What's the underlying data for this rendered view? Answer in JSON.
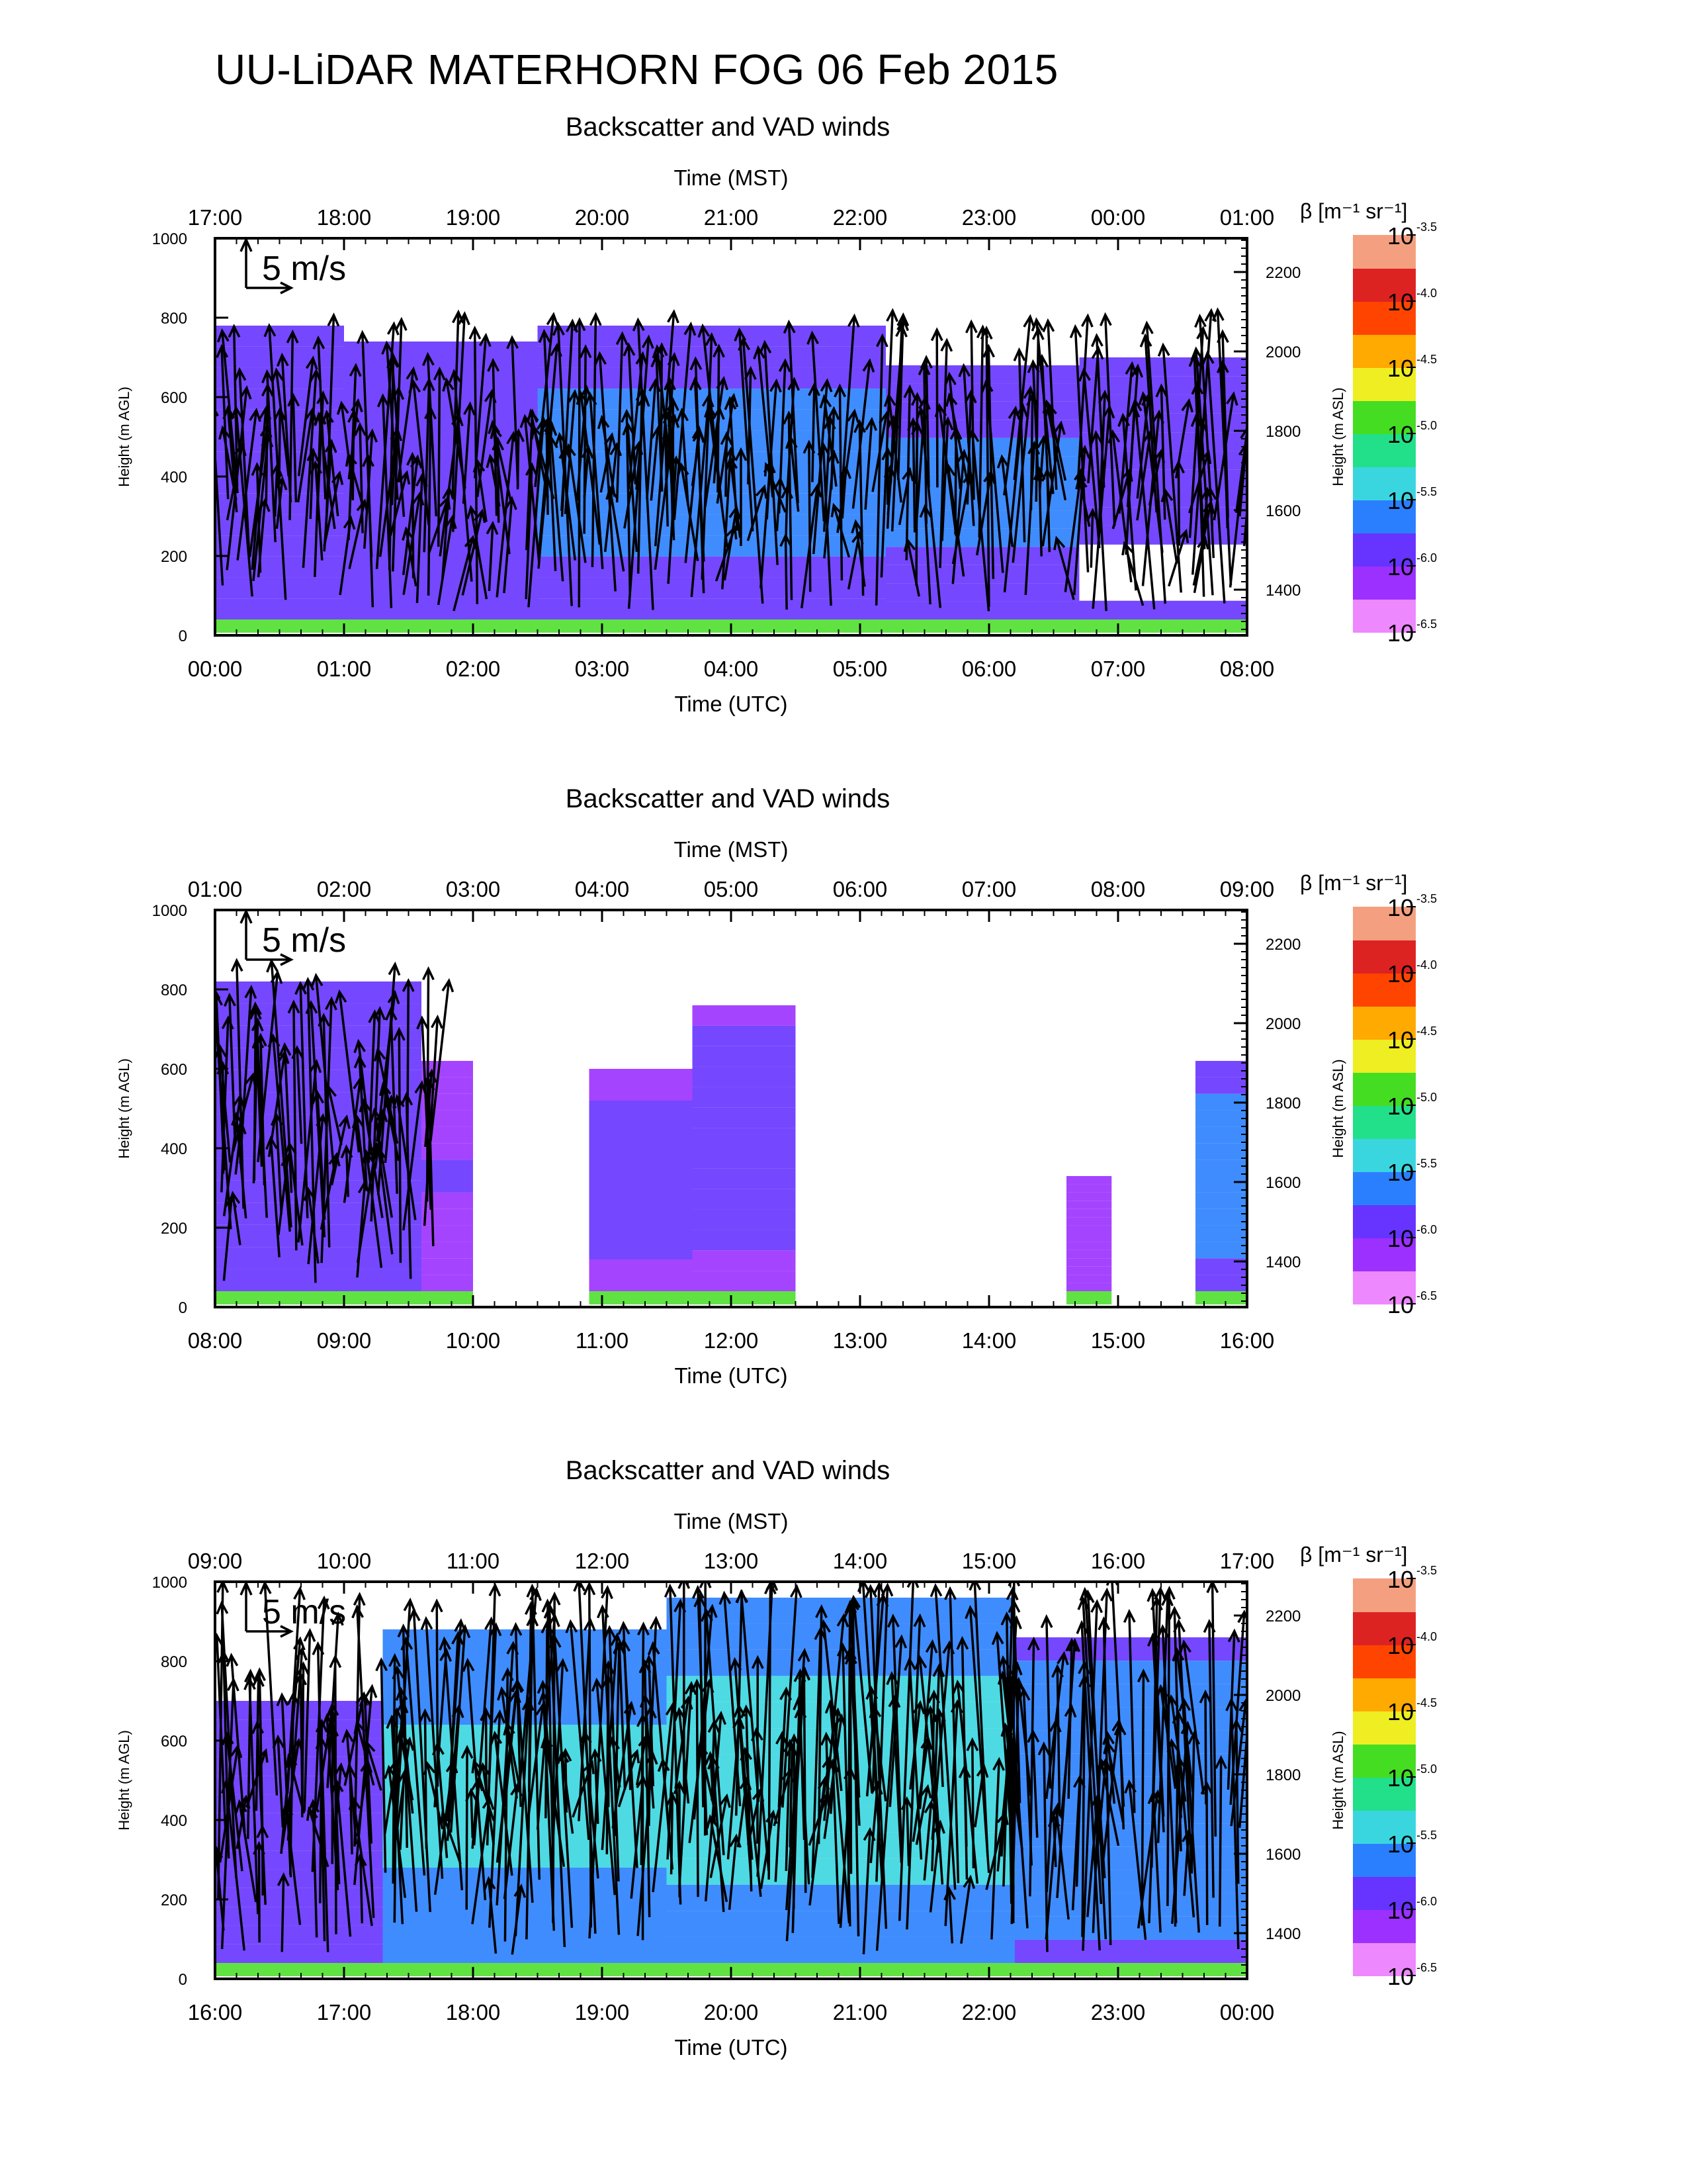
{
  "title": "UU-LiDAR MATERHORN FOG  06 Feb 2015",
  "colors": {
    "none": "#ffffff",
    "scale": [
      "#ee88ff",
      "#9b30ff",
      "#6633ff",
      "#2a7fff",
      "#3ad6e0",
      "#22e08a",
      "#44dd22",
      "#eeee22",
      "#ffaa00",
      "#ff4400",
      "#dd2222",
      "#f4a080"
    ]
  },
  "colorbar": {
    "title": "β [m⁻¹ sr⁻¹]",
    "ticks": [
      {
        "base": "10",
        "exp": "-3.5"
      },
      {
        "base": "10",
        "exp": "-4.0"
      },
      {
        "base": "10",
        "exp": "-4.5"
      },
      {
        "base": "10",
        "exp": "-5.0"
      },
      {
        "base": "10",
        "exp": "-5.5"
      },
      {
        "base": "10",
        "exp": "-6.0"
      },
      {
        "base": "10",
        "exp": "-6.5"
      }
    ]
  },
  "chart_data": [
    {
      "type": "heatmap",
      "title": "Backscatter and VAD winds",
      "xlabel": "Time (UTC)",
      "x2label": "Time (MST)",
      "ylabel": "Height (m AGL)",
      "y2label": "Height (m ASL)",
      "scale_label": "5 m/s",
      "x_ticks": [
        "00:00",
        "01:00",
        "02:00",
        "03:00",
        "04:00",
        "05:00",
        "06:00",
        "07:00",
        "08:00"
      ],
      "x2_ticks": [
        "17:00",
        "18:00",
        "19:00",
        "20:00",
        "21:00",
        "22:00",
        "23:00",
        "00:00",
        "01:00"
      ],
      "y_ticks": [
        "0",
        "200",
        "400",
        "600",
        "800",
        "1000"
      ],
      "y2_ticks": [
        "1400",
        "1600",
        "1800",
        "2000",
        "2200"
      ],
      "xlim": [
        0,
        8
      ],
      "ylim": [
        0,
        1000
      ],
      "y2lim": [
        1285,
        2285
      ],
      "coverage": [
        {
          "start": 0.0,
          "end": 1.0,
          "top": 780,
          "hole": null,
          "level": 0.9
        },
        {
          "start": 1.0,
          "end": 2.5,
          "top": 740,
          "hole": null,
          "level": 0.85
        },
        {
          "start": 2.5,
          "end": 5.2,
          "top": 780,
          "hole": null,
          "level": 1.1
        },
        {
          "start": 5.2,
          "end": 6.7,
          "top": 680,
          "hole": null,
          "level": 1.05
        },
        {
          "start": 6.7,
          "end": 8.0,
          "top": 700,
          "hole": [
            80,
            230
          ],
          "level": 0.9
        }
      ],
      "wind_columns": {
        "start": 0.08,
        "end": 7.95,
        "count": 82,
        "top": 760
      }
    },
    {
      "type": "heatmap",
      "title": "Backscatter and VAD winds",
      "xlabel": "Time (UTC)",
      "x2label": "Time (MST)",
      "ylabel": "Height (m AGL)",
      "y2label": "Height (m ASL)",
      "scale_label": "5 m/s",
      "x_ticks": [
        "08:00",
        "09:00",
        "10:00",
        "11:00",
        "12:00",
        "13:00",
        "14:00",
        "15:00",
        "16:00"
      ],
      "x2_ticks": [
        "01:00",
        "02:00",
        "03:00",
        "04:00",
        "05:00",
        "06:00",
        "07:00",
        "08:00",
        "09:00"
      ],
      "y_ticks": [
        "0",
        "200",
        "400",
        "600",
        "800",
        "1000"
      ],
      "y2_ticks": [
        "1400",
        "1600",
        "1800",
        "2000",
        "2200"
      ],
      "xlim": [
        8,
        16
      ],
      "ylim": [
        0,
        1000
      ],
      "y2lim": [
        1285,
        2285
      ],
      "coverage": [
        {
          "start": 8.0,
          "end": 9.6,
          "top": 820,
          "hole": null,
          "level": 0.95
        },
        {
          "start": 9.6,
          "end": 10.0,
          "top": 620,
          "hole": null,
          "level": 0.6
        },
        {
          "start": 10.9,
          "end": 11.7,
          "top": 600,
          "hole": null,
          "level": 0.7
        },
        {
          "start": 11.7,
          "end": 12.5,
          "top": 760,
          "hole": null,
          "level": 0.75
        },
        {
          "start": 14.6,
          "end": 14.95,
          "top": 330,
          "hole": null,
          "level": 0.5
        },
        {
          "start": 15.6,
          "end": 16.0,
          "top": 620,
          "hole": null,
          "level": 1.2
        }
      ],
      "wind_columns": {
        "start": 8.05,
        "end": 9.7,
        "count": 20,
        "top": 820
      }
    },
    {
      "type": "heatmap",
      "title": "Backscatter and VAD winds",
      "xlabel": "Time (UTC)",
      "x2label": "Time (MST)",
      "ylabel": "Height (m AGL)",
      "y2label": "Height (m ASL)",
      "scale_label": "5 m/s",
      "x_ticks": [
        "16:00",
        "17:00",
        "18:00",
        "19:00",
        "20:00",
        "21:00",
        "22:00",
        "23:00",
        "00:00"
      ],
      "x2_ticks": [
        "09:00",
        "10:00",
        "11:00",
        "12:00",
        "13:00",
        "14:00",
        "15:00",
        "16:00",
        "17:00"
      ],
      "y_ticks": [
        "0",
        "200",
        "400",
        "600",
        "800",
        "1000"
      ],
      "y2_ticks": [
        "1400",
        "1600",
        "1800",
        "2000",
        "2200"
      ],
      "xlim": [
        16,
        24
      ],
      "ylim": [
        0,
        1000
      ],
      "y2lim": [
        1285,
        2285
      ],
      "coverage": [
        {
          "start": 16.0,
          "end": 17.3,
          "top": 700,
          "hole": null,
          "level": 0.9
        },
        {
          "start": 17.3,
          "end": 19.5,
          "top": 880,
          "hole": null,
          "level": 1.5
        },
        {
          "start": 19.5,
          "end": 22.2,
          "top": 960,
          "hole": null,
          "level": 1.55
        },
        {
          "start": 22.2,
          "end": 24.0,
          "top": 860,
          "hole": null,
          "level": 1.35
        }
      ],
      "wind_columns": {
        "start": 16.05,
        "end": 23.95,
        "count": 90,
        "top": 960
      }
    }
  ]
}
